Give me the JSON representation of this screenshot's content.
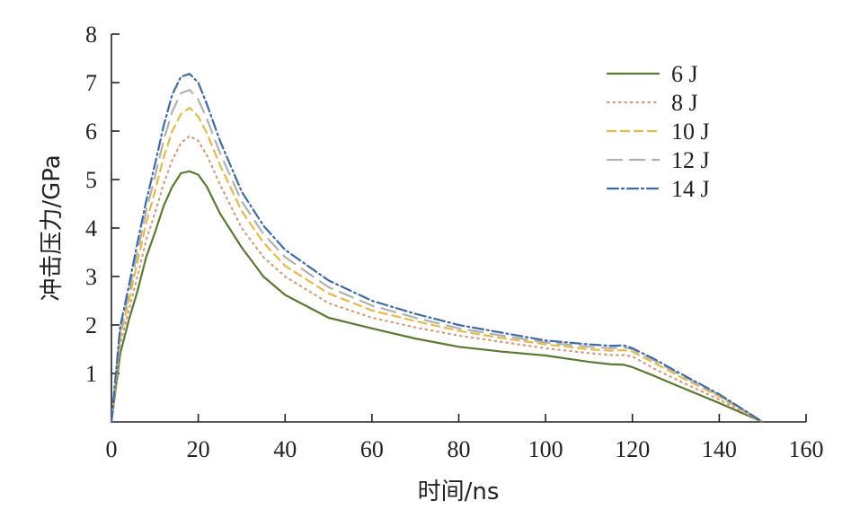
{
  "chart_data": {
    "type": "line",
    "title": "",
    "xlabel": "时间/ns",
    "ylabel": "冲击压力/GPa",
    "xlim": [
      0,
      160
    ],
    "ylim": [
      0,
      8
    ],
    "xticks": [
      0,
      20,
      40,
      60,
      80,
      100,
      120,
      140,
      160
    ],
    "yticks": [
      1,
      2,
      3,
      4,
      5,
      6,
      7,
      8
    ],
    "grid": false,
    "legend_position": "top-right",
    "series": [
      {
        "name": "6 J",
        "color": "#5a7a32",
        "dash": "solid",
        "points": [
          [
            0,
            0
          ],
          [
            2,
            1.4
          ],
          [
            4,
            2.1
          ],
          [
            6,
            2.7
          ],
          [
            8,
            3.4
          ],
          [
            10,
            3.9
          ],
          [
            12,
            4.45
          ],
          [
            14,
            4.85
          ],
          [
            16,
            5.13
          ],
          [
            18,
            5.17
          ],
          [
            20,
            5.1
          ],
          [
            22,
            4.85
          ],
          [
            25,
            4.3
          ],
          [
            30,
            3.6
          ],
          [
            35,
            3.0
          ],
          [
            40,
            2.62
          ],
          [
            50,
            2.15
          ],
          [
            60,
            1.93
          ],
          [
            70,
            1.72
          ],
          [
            80,
            1.55
          ],
          [
            90,
            1.45
          ],
          [
            100,
            1.37
          ],
          [
            110,
            1.24
          ],
          [
            115,
            1.19
          ],
          [
            118,
            1.18
          ],
          [
            120,
            1.13
          ],
          [
            125,
            0.95
          ],
          [
            130,
            0.76
          ],
          [
            140,
            0.39
          ],
          [
            150,
            0.0
          ]
        ]
      },
      {
        "name": "8 J",
        "color": "#d49a7a",
        "dash": "dotted",
        "points": [
          [
            0,
            0
          ],
          [
            2,
            1.6
          ],
          [
            4,
            2.3
          ],
          [
            6,
            3.0
          ],
          [
            8,
            3.75
          ],
          [
            10,
            4.3
          ],
          [
            12,
            4.9
          ],
          [
            14,
            5.4
          ],
          [
            16,
            5.75
          ],
          [
            18,
            5.9
          ],
          [
            20,
            5.8
          ],
          [
            22,
            5.5
          ],
          [
            25,
            4.9
          ],
          [
            30,
            4.0
          ],
          [
            35,
            3.4
          ],
          [
            40,
            3.0
          ],
          [
            50,
            2.45
          ],
          [
            60,
            2.15
          ],
          [
            70,
            1.95
          ],
          [
            80,
            1.78
          ],
          [
            90,
            1.65
          ],
          [
            100,
            1.52
          ],
          [
            110,
            1.42
          ],
          [
            115,
            1.38
          ],
          [
            118,
            1.38
          ],
          [
            120,
            1.35
          ],
          [
            125,
            1.1
          ],
          [
            130,
            0.88
          ],
          [
            140,
            0.46
          ],
          [
            150,
            0.0
          ]
        ]
      },
      {
        "name": "10 J",
        "color": "#e8b84a",
        "dash": "dashed",
        "points": [
          [
            0,
            0
          ],
          [
            2,
            1.75
          ],
          [
            4,
            2.5
          ],
          [
            6,
            3.3
          ],
          [
            8,
            4.1
          ],
          [
            10,
            4.75
          ],
          [
            12,
            5.45
          ],
          [
            14,
            6.0
          ],
          [
            16,
            6.35
          ],
          [
            18,
            6.48
          ],
          [
            20,
            6.3
          ],
          [
            22,
            5.95
          ],
          [
            25,
            5.3
          ],
          [
            30,
            4.35
          ],
          [
            35,
            3.7
          ],
          [
            40,
            3.22
          ],
          [
            50,
            2.65
          ],
          [
            60,
            2.3
          ],
          [
            70,
            2.08
          ],
          [
            80,
            1.88
          ],
          [
            90,
            1.73
          ],
          [
            100,
            1.6
          ],
          [
            110,
            1.5
          ],
          [
            115,
            1.47
          ],
          [
            118,
            1.48
          ],
          [
            120,
            1.45
          ],
          [
            125,
            1.22
          ],
          [
            130,
            0.98
          ],
          [
            140,
            0.52
          ],
          [
            150,
            0.0
          ]
        ]
      },
      {
        "name": "12 J",
        "color": "#b0b0b0",
        "dash": "longdash",
        "points": [
          [
            0,
            0
          ],
          [
            2,
            1.85
          ],
          [
            4,
            2.65
          ],
          [
            6,
            3.5
          ],
          [
            8,
            4.35
          ],
          [
            10,
            5.05
          ],
          [
            12,
            5.8
          ],
          [
            14,
            6.4
          ],
          [
            16,
            6.78
          ],
          [
            18,
            6.85
          ],
          [
            20,
            6.65
          ],
          [
            22,
            6.25
          ],
          [
            25,
            5.55
          ],
          [
            30,
            4.55
          ],
          [
            35,
            3.88
          ],
          [
            40,
            3.4
          ],
          [
            50,
            2.78
          ],
          [
            60,
            2.4
          ],
          [
            70,
            2.15
          ],
          [
            80,
            1.93
          ],
          [
            90,
            1.78
          ],
          [
            100,
            1.64
          ],
          [
            110,
            1.55
          ],
          [
            115,
            1.52
          ],
          [
            118,
            1.54
          ],
          [
            120,
            1.5
          ],
          [
            125,
            1.27
          ],
          [
            130,
            1.02
          ],
          [
            140,
            0.55
          ],
          [
            150,
            0.0
          ]
        ]
      },
      {
        "name": "14 J",
        "color": "#3d6aa8",
        "dash": "dashdot",
        "points": [
          [
            0,
            0
          ],
          [
            2,
            1.95
          ],
          [
            4,
            2.8
          ],
          [
            6,
            3.7
          ],
          [
            8,
            4.55
          ],
          [
            10,
            5.3
          ],
          [
            12,
            6.1
          ],
          [
            14,
            6.75
          ],
          [
            16,
            7.12
          ],
          [
            18,
            7.18
          ],
          [
            20,
            7.0
          ],
          [
            22,
            6.55
          ],
          [
            25,
            5.8
          ],
          [
            30,
            4.75
          ],
          [
            35,
            4.05
          ],
          [
            40,
            3.55
          ],
          [
            50,
            2.92
          ],
          [
            60,
            2.5
          ],
          [
            70,
            2.23
          ],
          [
            80,
            2.0
          ],
          [
            90,
            1.84
          ],
          [
            100,
            1.68
          ],
          [
            110,
            1.6
          ],
          [
            115,
            1.57
          ],
          [
            118,
            1.58
          ],
          [
            120,
            1.52
          ],
          [
            125,
            1.3
          ],
          [
            130,
            1.05
          ],
          [
            140,
            0.57
          ],
          [
            150,
            0.0
          ]
        ]
      }
    ]
  }
}
